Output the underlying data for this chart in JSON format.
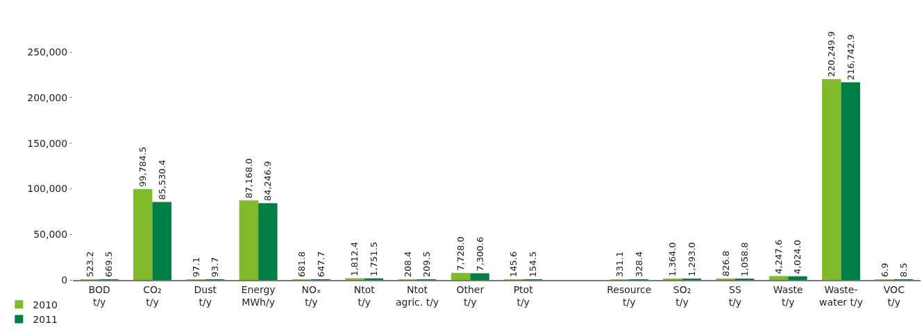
{
  "chart_data": {
    "type": "bar",
    "categories": [
      "BOD\nt/y",
      "CO₂\nt/y",
      "Dust\nt/y",
      "Energy\nMWh/y",
      "NOₓ\nt/y",
      "Ntot\nt/y",
      "Ntot\nagric. t/y",
      "Other\nt/y",
      "Ptot\nt/y",
      null,
      "Resource\nt/y",
      "SO₂\nt/y",
      "SS\nt/y",
      "Waste\nt/y",
      "Waste-\nwater t/y",
      "VOC\nt/y"
    ],
    "series": [
      {
        "name": "2010",
        "color": "#80b929",
        "values": [
          523.2,
          99784.5,
          97.1,
          87168.0,
          681.8,
          1812.4,
          208.4,
          7728.0,
          145.6,
          null,
          331.1,
          1364.0,
          826.8,
          4247.6,
          220249.9,
          6.9
        ],
        "value_labels": [
          "523.2",
          "99,784.5",
          "97.1",
          "87,168.0",
          "681.8",
          "1,812.4",
          "208.4",
          "7,728.0",
          "145.6",
          null,
          "331.1",
          "1,364.0",
          "826.8",
          "4,247.6",
          "220,249.9",
          "6.9"
        ]
      },
      {
        "name": "2011",
        "color": "#007f45",
        "values": [
          669.5,
          85530.4,
          93.7,
          84246.9,
          647.7,
          1751.5,
          209.5,
          7300.6,
          154.5,
          null,
          328.4,
          1293.0,
          1058.8,
          4024.0,
          216742.9,
          8.5
        ],
        "value_labels": [
          "669.5",
          "85,530.4",
          "93.7",
          "84,246.9",
          "647.7",
          "1,751.5",
          "209.5",
          "7,300.6",
          "154.5",
          null,
          "328.4",
          "1,293.0",
          "1,058.8",
          "4,024.0",
          "216,742.9",
          "8.5"
        ]
      }
    ],
    "ylim": [
      0,
      250000
    ],
    "yticks": [
      {
        "value": 0,
        "label": "0"
      },
      {
        "value": 50000,
        "label": "50,000"
      },
      {
        "value": 100000,
        "label": "100,000"
      },
      {
        "value": 150000,
        "label": "150,000"
      },
      {
        "value": 200000,
        "label": "200,000"
      },
      {
        "value": 250000,
        "label": "250,000"
      }
    ],
    "grid": false,
    "legend": "bottom left"
  }
}
